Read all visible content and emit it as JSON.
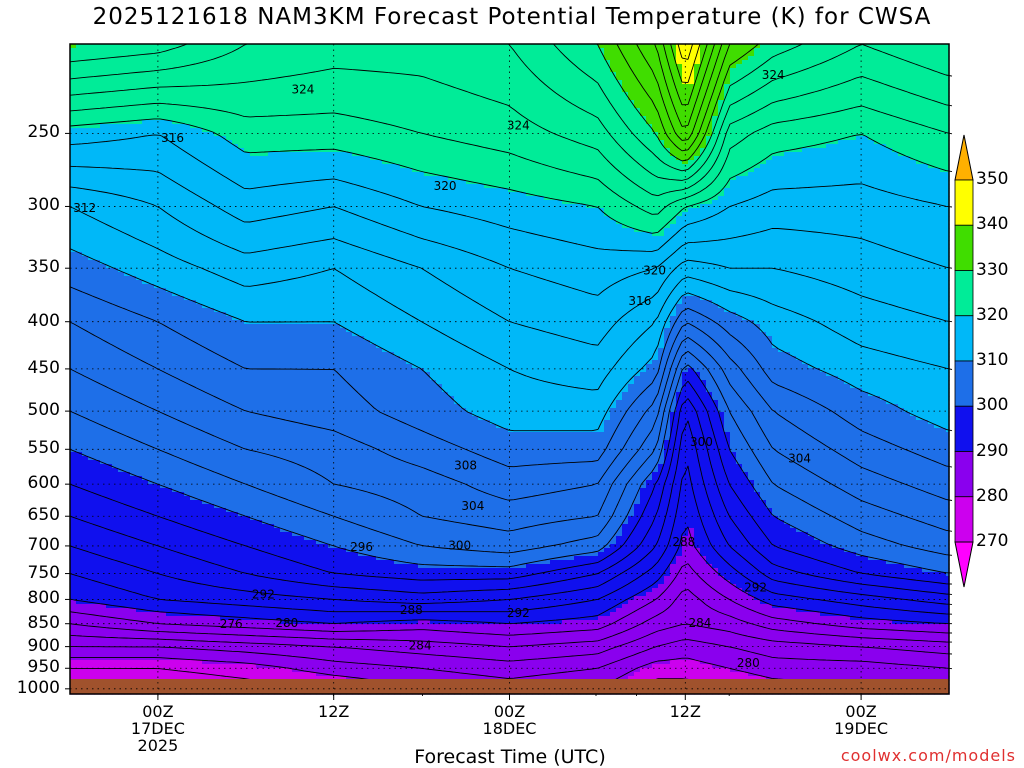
{
  "chart_data": {
    "type": "heatmap",
    "title": "2025121618 NAM3KM Forecast Potential Temperature (K) for CWSA",
    "xlabel": "Forecast Time (UTC)",
    "ylabel": "",
    "x_ticks": [
      {
        "hour": 6,
        "lines": [
          "00Z",
          "17DEC",
          "2025"
        ]
      },
      {
        "hour": 18,
        "lines": [
          "12Z"
        ]
      },
      {
        "hour": 30,
        "lines": [
          "00Z",
          "18DEC"
        ]
      },
      {
        "hour": 42,
        "lines": [
          "12Z"
        ]
      },
      {
        "hour": 54,
        "lines": [
          "00Z",
          "19DEC"
        ]
      }
    ],
    "x_range_hours": [
      0,
      60
    ],
    "y_ticks": [
      250,
      300,
      350,
      400,
      450,
      500,
      550,
      600,
      650,
      700,
      750,
      800,
      850,
      900,
      950,
      1000
    ],
    "y_range_hpa": [
      200,
      1013
    ],
    "colorbar": {
      "levels": [
        270,
        280,
        290,
        300,
        310,
        320,
        330,
        340,
        350
      ],
      "colors": [
        "#ff00ff",
        "#cc00ee",
        "#8a00ee",
        "#1010ee",
        "#1e6fe8",
        "#00b8f8",
        "#00ec98",
        "#40dd00",
        "#ffff00",
        "#ffb000"
      ],
      "labels": [
        "270",
        "280",
        "290",
        "300",
        "310",
        "320",
        "330",
        "340",
        "350"
      ]
    },
    "hours": [
      0,
      6,
      12,
      18,
      24,
      30,
      36,
      40,
      42,
      45,
      48,
      54,
      60
    ],
    "pressure_levels": [
      200,
      250,
      300,
      350,
      400,
      450,
      500,
      550,
      600,
      650,
      700,
      750,
      800,
      850,
      900,
      950,
      1000
    ],
    "theta_K": [
      [
        330,
        329,
        326,
        325,
        325,
        326,
        330,
        336,
        344,
        332,
        329,
        326,
        328
      ],
      [
        319,
        318,
        321,
        321,
        322,
        323,
        325,
        330,
        336,
        323,
        321,
        320,
        322
      ],
      [
        312,
        314,
        317,
        316,
        318,
        319,
        320,
        323,
        320,
        318,
        317,
        317,
        318
      ],
      [
        309,
        311,
        313,
        312,
        314,
        316,
        317,
        316,
        313,
        314,
        314,
        315,
        316
      ],
      [
        306,
        308,
        310,
        310,
        312,
        314,
        315,
        312,
        306,
        309,
        311,
        313,
        314
      ],
      [
        304,
        306,
        308,
        308,
        310,
        312,
        313,
        309,
        299,
        305,
        309,
        311,
        312
      ],
      [
        302,
        304,
        306,
        307,
        309,
        311,
        311,
        305,
        294,
        302,
        306,
        309,
        311
      ],
      [
        300,
        302,
        304,
        305,
        307,
        309,
        309,
        302,
        292,
        300,
        304,
        307,
        309
      ],
      [
        298,
        300,
        302,
        304,
        305,
        307,
        306,
        298,
        291,
        298,
        302,
        305,
        307
      ],
      [
        296,
        298,
        300,
        302,
        304,
        305,
        304,
        296,
        290,
        296,
        300,
        303,
        305
      ],
      [
        294,
        296,
        298,
        300,
        302,
        303,
        301,
        294,
        289,
        294,
        298,
        301,
        303
      ],
      [
        292,
        294,
        296,
        298,
        299,
        299,
        296,
        291,
        287,
        291,
        295,
        298,
        300
      ],
      [
        290,
        292,
        293,
        294,
        295,
        294,
        292,
        288,
        285,
        288,
        291,
        293,
        295
      ],
      [
        286,
        288,
        289,
        290,
        289,
        290,
        289,
        285,
        284,
        285,
        287,
        289,
        290
      ],
      [
        282,
        282,
        283,
        284,
        285,
        286,
        285,
        282,
        281,
        282,
        283,
        284,
        285
      ],
      [
        278,
        278,
        279,
        281,
        282,
        283,
        282,
        279,
        279,
        280,
        281,
        281,
        282
      ],
      [
        275,
        276,
        277,
        278,
        280,
        281,
        280,
        277,
        277,
        278,
        279,
        280,
        281
      ]
    ],
    "contour_labels": [
      {
        "text": "324",
        "hour": 15.9,
        "p": 224
      },
      {
        "text": "324",
        "hour": 48.0,
        "p": 216
      },
      {
        "text": "324",
        "hour": 30.6,
        "p": 245
      },
      {
        "text": "316",
        "hour": 7.0,
        "p": 253
      },
      {
        "text": "320",
        "hour": 25.6,
        "p": 285
      },
      {
        "text": "312",
        "hour": 1.0,
        "p": 301
      },
      {
        "text": "320",
        "hour": 39.9,
        "p": 352
      },
      {
        "text": "316",
        "hour": 38.9,
        "p": 380
      },
      {
        "text": "300",
        "hour": 43.1,
        "p": 540
      },
      {
        "text": "304",
        "hour": 49.8,
        "p": 563
      },
      {
        "text": "308",
        "hour": 27.0,
        "p": 573
      },
      {
        "text": "304",
        "hour": 27.5,
        "p": 634
      },
      {
        "text": "300",
        "hour": 26.6,
        "p": 699
      },
      {
        "text": "296",
        "hour": 19.9,
        "p": 702
      },
      {
        "text": "288",
        "hour": 41.9,
        "p": 693
      },
      {
        "text": "292",
        "hour": 46.8,
        "p": 777
      },
      {
        "text": "292",
        "hour": 13.2,
        "p": 790
      },
      {
        "text": "288",
        "hour": 23.3,
        "p": 821
      },
      {
        "text": "292",
        "hour": 30.6,
        "p": 828
      },
      {
        "text": "276",
        "hour": 11.0,
        "p": 851
      },
      {
        "text": "280",
        "hour": 14.8,
        "p": 848
      },
      {
        "text": "284",
        "hour": 43.0,
        "p": 848
      },
      {
        "text": "284",
        "hour": 23.9,
        "p": 898
      },
      {
        "text": "280",
        "hour": 46.3,
        "p": 937
      }
    ]
  },
  "colors": {
    "ground": "#a0522d",
    "grid": "#000000",
    "credit": "#e03030"
  },
  "footer": {
    "credit": "coolwx.com/models"
  }
}
